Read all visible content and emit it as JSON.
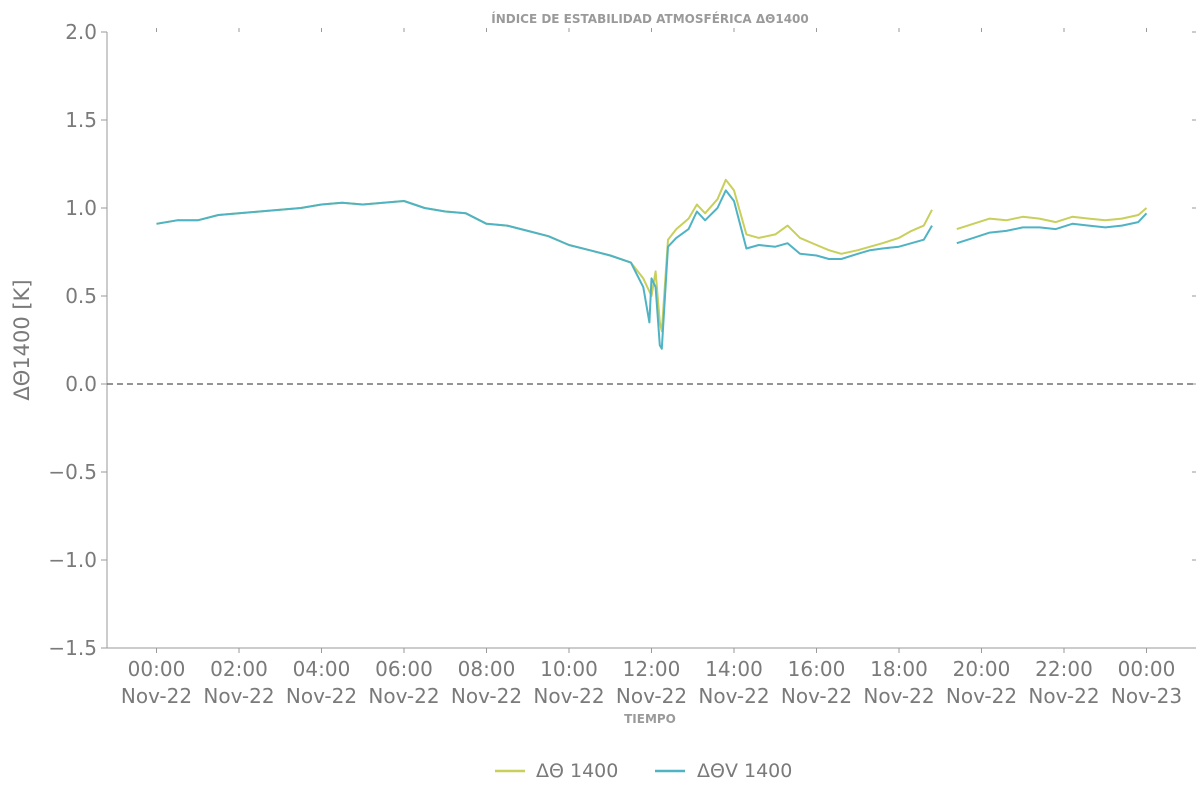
{
  "chart_data": {
    "type": "line",
    "title": "ÍNDICE DE ESTABILIDAD ATMOSFÉRICA ΔΘ1400",
    "xlabel": "TIEMPO",
    "ylabel": "ΔΘ1400 [K]",
    "ylim": [
      -1.5,
      2.0
    ],
    "xlim_hours": [
      -1.2,
      25.2
    ],
    "yticks": [
      "2.0",
      "1.5",
      "1.0",
      "0.5",
      "0.0",
      "−0.5",
      "−1.0",
      "−1.5"
    ],
    "ytick_values": [
      2.0,
      1.5,
      1.0,
      0.5,
      0.0,
      -0.5,
      -1.0,
      -1.5
    ],
    "xticks": [
      {
        "time": "00:00",
        "date": "Nov-22"
      },
      {
        "time": "02:00",
        "date": "Nov-22"
      },
      {
        "time": "04:00",
        "date": "Nov-22"
      },
      {
        "time": "06:00",
        "date": "Nov-22"
      },
      {
        "time": "08:00",
        "date": "Nov-22"
      },
      {
        "time": "10:00",
        "date": "Nov-22"
      },
      {
        "time": "12:00",
        "date": "Nov-22"
      },
      {
        "time": "14:00",
        "date": "Nov-22"
      },
      {
        "time": "16:00",
        "date": "Nov-22"
      },
      {
        "time": "18:00",
        "date": "Nov-22"
      },
      {
        "time": "20:00",
        "date": "Nov-22"
      },
      {
        "time": "22:00",
        "date": "Nov-22"
      },
      {
        "time": "00:00",
        "date": "Nov-23"
      }
    ],
    "xtick_hours": [
      0,
      2,
      4,
      6,
      8,
      10,
      12,
      14,
      16,
      18,
      20,
      22,
      24
    ],
    "reference_line": {
      "y": 0.0,
      "style": "dashed",
      "color": "#555555"
    },
    "legend_position": "bottom-center",
    "series": [
      {
        "name": "ΔΘ 1400",
        "color": "#c8cf5a",
        "x": [
          0,
          0.5,
          1,
          1.5,
          2,
          2.5,
          3,
          3.5,
          4,
          4.5,
          5,
          5.5,
          6,
          6.5,
          7,
          7.5,
          8,
          8.5,
          9,
          9.5,
          10,
          10.5,
          11,
          11.5,
          11.8,
          12,
          12.1,
          12.2,
          12.25,
          12.4,
          12.6,
          12.9,
          13.1,
          13.3,
          13.6,
          13.8,
          14,
          14.3,
          14.6,
          15,
          15.3,
          15.6,
          16,
          16.3,
          16.6,
          17,
          17.3,
          17.6,
          18,
          18.3,
          18.6,
          18.8,
          19.0,
          19.4,
          19.8,
          20.2,
          20.6,
          21,
          21.4,
          21.8,
          22.2,
          22.6,
          23,
          23.4,
          23.8,
          24
        ],
        "y": [
          0.91,
          0.93,
          0.93,
          0.96,
          0.97,
          0.98,
          0.99,
          1.0,
          1.02,
          1.03,
          1.02,
          1.03,
          1.04,
          1.0,
          0.98,
          0.97,
          0.91,
          0.9,
          0.87,
          0.84,
          0.79,
          0.76,
          0.73,
          0.69,
          0.6,
          0.5,
          0.64,
          0.35,
          0.3,
          0.82,
          0.88,
          0.94,
          1.02,
          0.97,
          1.05,
          1.16,
          1.1,
          0.85,
          0.83,
          0.85,
          0.9,
          0.83,
          0.79,
          0.76,
          0.74,
          0.76,
          0.78,
          0.8,
          0.83,
          0.87,
          0.9,
          0.99,
          null,
          0.88,
          0.91,
          0.94,
          0.93,
          0.95,
          0.94,
          0.92,
          0.95,
          0.94,
          0.93,
          0.94,
          0.96,
          1.0
        ]
      },
      {
        "name": "ΔΘV 1400",
        "color": "#4fb3c4",
        "x": [
          0,
          0.5,
          1,
          1.5,
          2,
          2.5,
          3,
          3.5,
          4,
          4.5,
          5,
          5.5,
          6,
          6.5,
          7,
          7.5,
          8,
          8.5,
          9,
          9.5,
          10,
          10.5,
          11,
          11.5,
          11.8,
          11.95,
          12,
          12.1,
          12.2,
          12.25,
          12.4,
          12.6,
          12.9,
          13.1,
          13.3,
          13.6,
          13.8,
          14,
          14.3,
          14.6,
          15,
          15.3,
          15.6,
          16,
          16.3,
          16.6,
          17,
          17.3,
          17.6,
          18,
          18.3,
          18.6,
          18.8,
          19.0,
          19.4,
          19.8,
          20.2,
          20.6,
          21,
          21.4,
          21.8,
          22.2,
          22.6,
          23,
          23.4,
          23.8,
          24
        ],
        "y": [
          0.91,
          0.93,
          0.93,
          0.96,
          0.97,
          0.98,
          0.99,
          1.0,
          1.02,
          1.03,
          1.02,
          1.03,
          1.04,
          1.0,
          0.98,
          0.97,
          0.91,
          0.9,
          0.87,
          0.84,
          0.79,
          0.76,
          0.73,
          0.69,
          0.55,
          0.35,
          0.6,
          0.55,
          0.22,
          0.2,
          0.78,
          0.83,
          0.88,
          0.98,
          0.93,
          1.0,
          1.1,
          1.04,
          0.77,
          0.79,
          0.78,
          0.8,
          0.74,
          0.73,
          0.71,
          0.71,
          0.74,
          0.76,
          0.77,
          0.78,
          0.8,
          0.82,
          0.9,
          null,
          0.8,
          0.83,
          0.86,
          0.87,
          0.89,
          0.89,
          0.88,
          0.91,
          0.9,
          0.89,
          0.9,
          0.92,
          0.97
        ]
      }
    ]
  }
}
